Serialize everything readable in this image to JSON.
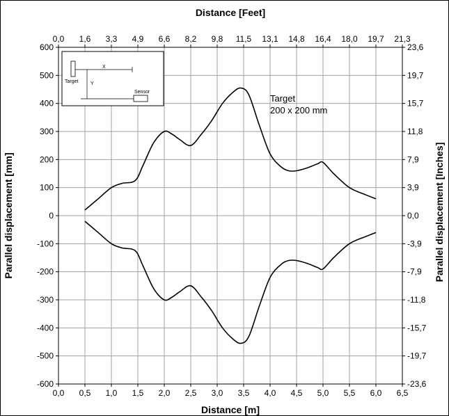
{
  "chart_data": {
    "type": "line",
    "title": "",
    "xlabel_bottom": "Distance [m]",
    "xlabel_top": "Distance [Feet]",
    "ylabel_left": "Parallel displacement  [mm]",
    "ylabel_right": "Parallel displacement  [Inches]",
    "xlim": [
      0,
      6.5
    ],
    "ylim": [
      -600,
      600
    ],
    "grid": true,
    "bottom_ticks": [
      "0,0",
      "0,5",
      "1,0",
      "1,5",
      "2,0",
      "2,5",
      "3,0",
      "3,5",
      "4,0",
      "4,5",
      "5,0",
      "5,5",
      "6,0",
      "6,5"
    ],
    "top_ticks": [
      "0,0",
      "1,6",
      "3,3",
      "4,9",
      "6,6",
      "8,2",
      "9,8",
      "11,5",
      "13,1",
      "14,8",
      "16,4",
      "18,0",
      "19,7",
      "21,3"
    ],
    "left_ticks": [
      "600",
      "500",
      "400",
      "300",
      "200",
      "100",
      "0",
      "-100",
      "-200",
      "-300",
      "-400",
      "-500",
      "-600"
    ],
    "right_ticks": [
      "23,6",
      "19,7",
      "15,7",
      "11,8",
      "7,9",
      "3,9",
      "0,0",
      "-3,9",
      "-7,9",
      "-11,8",
      "-15,7",
      "-19,7",
      "-23,6"
    ],
    "annotation": [
      "Target",
      "200 x 200 mm"
    ],
    "inset": {
      "x_label": "X",
      "y_label": "Y",
      "target_label": "Target",
      "sensor_label": "Sensor"
    },
    "series": [
      {
        "line_color": "#000000",
        "x": [
          0.5,
          0.75,
          1.0,
          1.2,
          1.45,
          1.6,
          1.8,
          2.0,
          2.15,
          2.3,
          2.5,
          2.7,
          2.9,
          3.1,
          3.3,
          3.45,
          3.6,
          3.8,
          4.0,
          4.2,
          4.35,
          4.5,
          4.7,
          4.9,
          5.0,
          5.2,
          5.5,
          5.8,
          6.0
        ],
        "values": [
          20,
          60,
          100,
          115,
          125,
          180,
          260,
          300,
          290,
          270,
          250,
          290,
          340,
          400,
          440,
          455,
          430,
          320,
          220,
          175,
          160,
          160,
          170,
          185,
          190,
          150,
          100,
          75,
          60
        ]
      },
      {
        "line_color": "#000000",
        "x": [
          0.5,
          0.75,
          1.0,
          1.2,
          1.45,
          1.6,
          1.8,
          2.0,
          2.15,
          2.3,
          2.5,
          2.7,
          2.9,
          3.1,
          3.3,
          3.45,
          3.6,
          3.8,
          4.0,
          4.2,
          4.35,
          4.5,
          4.7,
          4.9,
          5.0,
          5.2,
          5.5,
          5.8,
          6.0
        ],
        "values": [
          -20,
          -60,
          -100,
          -115,
          -125,
          -180,
          -260,
          -300,
          -290,
          -270,
          -250,
          -290,
          -340,
          -400,
          -440,
          -455,
          -430,
          -320,
          -220,
          -175,
          -160,
          -160,
          -170,
          -185,
          -190,
          -150,
          -100,
          -75,
          -60
        ]
      }
    ]
  }
}
